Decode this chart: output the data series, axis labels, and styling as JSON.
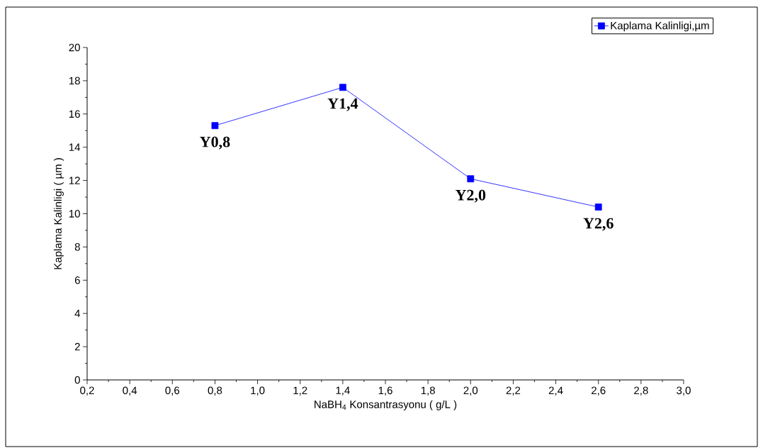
{
  "chart_data": {
    "type": "line",
    "xlabel": "NaBH$_{4}$ Konsantrasyonu ( g/L )",
    "ylabel": "Kaplama Kalinligi ( µm )",
    "x": [
      0.8,
      1.4,
      2.0,
      2.6
    ],
    "series": [
      {
        "name": "Kaplama Kalinligi,µm",
        "color": "#0000ff",
        "values": [
          15.3,
          17.6,
          12.1,
          10.4
        ]
      }
    ],
    "xlim": [
      0.2,
      3.0
    ],
    "xticks": [
      {
        "value": 0.2,
        "label": "0,2"
      },
      {
        "value": 0.4,
        "label": "0,4"
      },
      {
        "value": 0.6,
        "label": "0,6"
      },
      {
        "value": 0.8,
        "label": "0,8"
      },
      {
        "value": 1.0,
        "label": "1,0"
      },
      {
        "value": 1.2,
        "label": "1,2"
      },
      {
        "value": 1.4,
        "label": "1,4"
      },
      {
        "value": 1.6,
        "label": "1,6"
      },
      {
        "value": 1.8,
        "label": "1,8"
      },
      {
        "value": 2.0,
        "label": "2,0"
      },
      {
        "value": 2.2,
        "label": "2,2"
      },
      {
        "value": 2.4,
        "label": "2,4"
      },
      {
        "value": 2.6,
        "label": "2,6"
      },
      {
        "value": 2.8,
        "label": "2,8"
      },
      {
        "value": 3.0,
        "label": "3,0"
      }
    ],
    "ylim": [
      0,
      20
    ],
    "yticks": [
      0,
      2,
      4,
      6,
      8,
      10,
      12,
      14,
      16,
      18,
      20
    ],
    "annotations": [
      {
        "text": "Y0,8",
        "x": 0.8,
        "y": 15.3
      },
      {
        "text": "Y1,4",
        "x": 1.4,
        "y": 17.6
      },
      {
        "text": "Y2,0",
        "x": 2.0,
        "y": 12.1
      },
      {
        "text": "Y2,6",
        "x": 2.6,
        "y": 10.4
      }
    ],
    "legend": "top right",
    "marker": "square",
    "line_style": "solid",
    "grid": false
  }
}
